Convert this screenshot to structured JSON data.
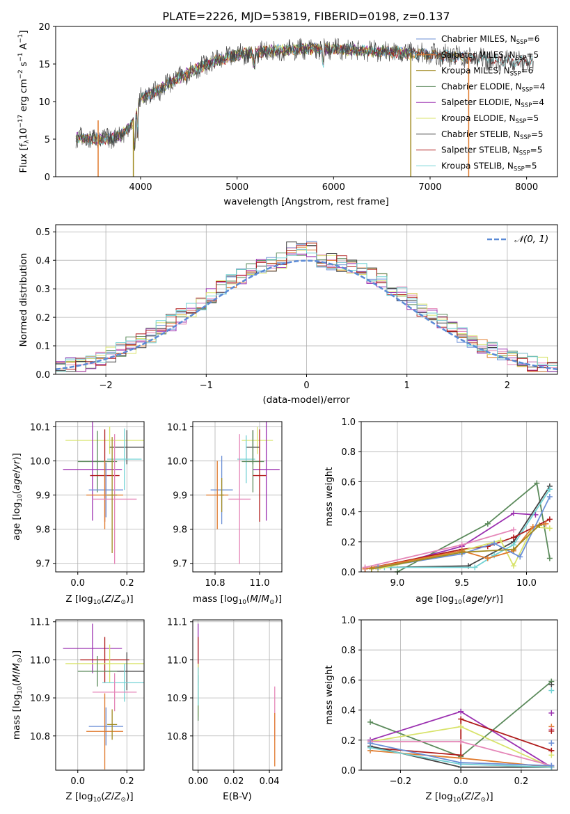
{
  "colors": {
    "chabrier_miles": "#6b8fd6",
    "salpeter_miles": "#e07a2c",
    "kroupa_miles": "#a08a20",
    "chabrier_elodie": "#5b8a5b",
    "salpeter_elodie": "#9b30b0",
    "kroupa_elodie": "#d8e36a",
    "chabrier_stelib": "#444444",
    "salpeter_stelib": "#b01c1c",
    "kroupa_stelib": "#72d2d4",
    "pink": "#e586b8",
    "normal_line": "#5a8ad6",
    "grid": "#b0b0b0"
  },
  "chart_data": [
    {
      "id": "spectrum",
      "type": "line",
      "title": "PLATE=2226, MJD=53819, FIBERID=0198, z=0.137",
      "xlabel": "wavelength [Angstrom, rest frame]",
      "ylabel": "Flux [f_λ10^-17 erg cm^-2 s^-1 A^-1]",
      "xlim": [
        3120,
        8320
      ],
      "ylim": [
        0,
        20
      ],
      "xticks": [
        "4000",
        "5000",
        "6000",
        "7000",
        "8000"
      ],
      "yticks": [
        "0",
        "5",
        "10",
        "15",
        "20"
      ],
      "grid": false,
      "legend_position": "top-right",
      "continuum_nodes": {
        "x": [
          3330,
          3500,
          3650,
          3800,
          3900,
          3940,
          4000,
          4150,
          4300,
          4450,
          4600,
          4800,
          5000,
          5200,
          5400,
          5700,
          6000,
          6300,
          6600,
          6900,
          7200,
          7500,
          7800,
          8070
        ],
        "y": [
          5.2,
          5.0,
          5.0,
          5.6,
          6.8,
          7.5,
          10.5,
          11.2,
          12.5,
          13.5,
          14.5,
          15.5,
          16.2,
          16.6,
          16.8,
          17.0,
          17.0,
          16.8,
          16.6,
          16.3,
          16.1,
          15.7,
          15.4,
          15.2
        ]
      },
      "dropouts": [
        {
          "x": 3560,
          "y": 0
        },
        {
          "x": 3925,
          "y": 0
        },
        {
          "x": 6800,
          "y": 0
        },
        {
          "x": 7400,
          "y": 0
        }
      ],
      "series": [
        {
          "name": "Chabrier MILES, N_SSP=6",
          "name_main": "Chabrier MILES, N",
          "sub": "SSP",
          "n": "=6",
          "color_key": "chabrier_miles"
        },
        {
          "name": "Salpeter MILES, N_SSP=5",
          "name_main": "Salpeter MILES, N",
          "sub": "SSP",
          "n": "=5",
          "color_key": "salpeter_miles"
        },
        {
          "name": "Kroupa MILES, N_SSP=6",
          "name_main": "Kroupa MILES, N",
          "sub": "SSP",
          "n": "=6",
          "color_key": "kroupa_miles"
        },
        {
          "name": "Chabrier ELODIE, N_SSP=4",
          "name_main": "Chabrier ELODIE, N",
          "sub": "SSP",
          "n": "=4",
          "color_key": "chabrier_elodie"
        },
        {
          "name": "Salpeter ELODIE, N_SSP=4",
          "name_main": "Salpeter ELODIE, N",
          "sub": "SSP",
          "n": "=4",
          "color_key": "salpeter_elodie"
        },
        {
          "name": "Kroupa ELODIE, N_SSP=5",
          "name_main": "Kroupa ELODIE, N",
          "sub": "SSP",
          "n": "=5",
          "color_key": "kroupa_elodie"
        },
        {
          "name": "Chabrier STELIB, N_SSP=5",
          "name_main": "Chabrier STELIB, N",
          "sub": "SSP",
          "n": "=5",
          "color_key": "chabrier_stelib"
        },
        {
          "name": "Salpeter STELIB, N_SSP=5",
          "name_main": "Salpeter STELIB, N",
          "sub": "SSP",
          "n": "=5",
          "color_key": "salpeter_stelib"
        },
        {
          "name": "Kroupa STELIB, N_SSP=5",
          "name_main": "Kroupa STELIB, N",
          "sub": "SSP",
          "n": "=5",
          "color_key": "kroupa_stelib"
        }
      ]
    },
    {
      "id": "residuals",
      "type": "line",
      "xlabel": "(data-model)/error",
      "ylabel": "Normed distribution",
      "xlim": [
        -2.5,
        2.5
      ],
      "ylim": [
        0,
        0.525
      ],
      "xticks": [
        "−2",
        "−1",
        "0",
        "1",
        "2"
      ],
      "xtick_values": [
        -2,
        -1,
        0,
        1,
        2
      ],
      "yticks": [
        "0.0",
        "0.1",
        "0.2",
        "0.3",
        "0.4",
        "0.5"
      ],
      "ytick_values": [
        0,
        0.1,
        0.2,
        0.3,
        0.4,
        0.5
      ],
      "grid": true,
      "legend_position": "top-right",
      "legend_label": "𝒩(0, 1)",
      "bin_width": 0.1
    },
    {
      "id": "age_vs_Z",
      "type": "scatter",
      "xlabel_main": "Z [log",
      "xlabel_sub": "10",
      "xlabel_rest": "(Z/Z",
      "ylabel": "age  [log10(age/yr)]",
      "xlim": [
        -0.09,
        0.27
      ],
      "ylim": [
        9.675,
        10.115
      ],
      "xticks": [
        "0.0",
        "0.2"
      ],
      "xtick_values": [
        0,
        0.2
      ],
      "yticks": [
        "9.7",
        "9.8",
        "9.9",
        "10.0",
        "10.1"
      ],
      "ytick_values": [
        9.7,
        9.8,
        9.9,
        10.0,
        10.1
      ],
      "grid": true,
      "points": [
        {
          "c": "kroupa_elodie",
          "x": 0.13,
          "y": 10.06,
          "xe": 0.18,
          "ye": 0.04
        },
        {
          "c": "chabrier_stelib",
          "x": 0.2,
          "y": 10.04,
          "xe": 0.07,
          "ye": 0.05
        },
        {
          "c": "kroupa_stelib",
          "x": 0.19,
          "y": 10.005,
          "xe": 0.07,
          "ye": 0.09
        },
        {
          "c": "chabrier_elodie",
          "x": 0.08,
          "y": 9.998,
          "xe": 0.08,
          "ye": 0.09
        },
        {
          "c": "salpeter_elodie",
          "x": 0.06,
          "y": 9.975,
          "xe": 0.12,
          "ye": 0.15
        },
        {
          "c": "salpeter_stelib",
          "x": 0.11,
          "y": 9.957,
          "xe": 0.06,
          "ye": 0.135
        },
        {
          "c": "chabrier_miles",
          "x": 0.115,
          "y": 9.915,
          "xe": 0.07,
          "ye": 0.08
        },
        {
          "c": "salpeter_miles",
          "x": 0.11,
          "y": 9.9,
          "xe": 0.075,
          "ye": 0.1
        },
        {
          "c": "pink",
          "x": 0.15,
          "y": 9.888,
          "xe": 0.09,
          "ye": 0.19
        },
        {
          "c": "kroupa_miles",
          "x": 0.14,
          "y": 9.9,
          "xe": 0.02,
          "ye": 0.17
        }
      ]
    },
    {
      "id": "age_vs_mass",
      "type": "scatter",
      "xlabel_main": "mass [log",
      "xlabel_sub": "10",
      "xlabel_rest": "(M/M",
      "xlim": [
        10.7,
        11.1
      ],
      "ylim": [
        9.675,
        10.115
      ],
      "xticks": [
        "10.8",
        "11.0"
      ],
      "xtick_values": [
        10.8,
        11.0
      ],
      "yticks": [
        "9.7",
        "9.8",
        "9.9",
        "10.0",
        "10.1"
      ],
      "ytick_values": [
        9.7,
        9.8,
        9.9,
        10.0,
        10.1
      ],
      "grid": true,
      "points": [
        {
          "c": "kroupa_elodie",
          "x": 10.99,
          "y": 10.06,
          "xe": 0.07,
          "ye": 0.04
        },
        {
          "c": "chabrier_stelib",
          "x": 10.97,
          "y": 10.04,
          "xe": 0.03,
          "ye": 0.05
        },
        {
          "c": "kroupa_stelib",
          "x": 10.94,
          "y": 10.005,
          "xe": 0.04,
          "ye": 0.07
        },
        {
          "c": "chabrier_elodie",
          "x": 10.97,
          "y": 9.998,
          "xe": 0.05,
          "ye": 0.09
        },
        {
          "c": "salpeter_elodie",
          "x": 11.03,
          "y": 9.975,
          "xe": 0.06,
          "ye": 0.15
        },
        {
          "c": "salpeter_stelib",
          "x": 11.0,
          "y": 9.957,
          "xe": 0.03,
          "ye": 0.135
        },
        {
          "c": "chabrier_miles",
          "x": 10.83,
          "y": 9.915,
          "xe": 0.05,
          "ye": 0.1
        },
        {
          "c": "salpeter_miles",
          "x": 10.81,
          "y": 9.9,
          "xe": 0.05,
          "ye": 0.1
        },
        {
          "c": "pink",
          "x": 10.91,
          "y": 9.888,
          "xe": 0.05,
          "ye": 0.19
        },
        {
          "c": "kroupa_miles",
          "x": 10.83,
          "y": 9.9,
          "xe": 0.01,
          "ye": 0.05
        }
      ]
    },
    {
      "id": "weight_vs_age",
      "type": "line",
      "xlabel_main": "age  [log",
      "xlabel_sub": "10",
      "xlabel_rest": "(age/yr)]",
      "ylabel": "mass weight",
      "xlim": [
        8.72,
        10.24
      ],
      "ylim": [
        0,
        1
      ],
      "xticks": [
        "9.0",
        "9.5",
        "10.0"
      ],
      "xtick_values": [
        9.0,
        9.5,
        10.0
      ],
      "yticks": [
        "0.0",
        "0.2",
        "0.4",
        "0.6",
        "0.8",
        "1.0"
      ],
      "ytick_values": [
        0,
        0.2,
        0.4,
        0.6,
        0.8,
        1.0
      ],
      "grid": true,
      "series": [
        {
          "c": "chabrier_elodie",
          "x": [
            9.0,
            9.7,
            10.08,
            10.18
          ],
          "y": [
            0.0,
            0.32,
            0.59,
            0.09
          ]
        },
        {
          "c": "salpeter_elodie",
          "x": [
            8.85,
            9.5,
            9.9,
            10.07
          ],
          "y": [
            0.02,
            0.17,
            0.39,
            0.38
          ]
        },
        {
          "c": "chabrier_stelib",
          "x": [
            8.95,
            9.55,
            9.9,
            10.18
          ],
          "y": [
            0.03,
            0.04,
            0.2,
            0.57
          ]
        },
        {
          "c": "kroupa_stelib",
          "x": [
            8.9,
            9.6,
            9.75,
            9.9,
            10.18
          ],
          "y": [
            0.03,
            0.03,
            0.11,
            0.18,
            0.55
          ]
        },
        {
          "c": "salpeter_stelib",
          "x": [
            8.75,
            9.5,
            9.7,
            9.9,
            10.18
          ],
          "y": [
            0.02,
            0.15,
            0.17,
            0.23,
            0.35
          ]
        },
        {
          "c": "kroupa_elodie",
          "x": [
            8.85,
            9.5,
            9.8,
            9.9,
            10.05,
            10.18
          ],
          "y": [
            0.02,
            0.14,
            0.21,
            0.04,
            0.3,
            0.29
          ]
        },
        {
          "c": "salpeter_miles",
          "x": [
            8.75,
            9.5,
            9.7,
            9.9,
            10.05,
            10.15
          ],
          "y": [
            0.02,
            0.14,
            0.09,
            0.14,
            0.3,
            0.32
          ]
        },
        {
          "c": "pink",
          "x": [
            8.75,
            9.5,
            9.9
          ],
          "y": [
            0.03,
            0.18,
            0.28
          ]
        },
        {
          "c": "chabrier_miles",
          "x": [
            8.85,
            9.5,
            9.75,
            9.95,
            10.18
          ],
          "y": [
            0.03,
            0.12,
            0.19,
            0.1,
            0.5
          ]
        },
        {
          "c": "kroupa_miles",
          "x": [
            8.8,
            9.5,
            9.9,
            10.1
          ],
          "y": [
            0.02,
            0.13,
            0.15,
            0.31
          ]
        }
      ]
    },
    {
      "id": "mass_vs_Z",
      "type": "scatter",
      "xlabel_main": "Z [log",
      "xlabel_sub": "10",
      "xlabel_rest": "(Z/Z",
      "ylabel": "mass [log10(M/M⊙)]",
      "xlim": [
        -0.09,
        0.27
      ],
      "ylim": [
        10.71,
        11.105
      ],
      "xticks": [
        "0.0",
        "0.2"
      ],
      "xtick_values": [
        0,
        0.2
      ],
      "yticks": [
        "10.8",
        "10.9",
        "11.0",
        "11.1"
      ],
      "ytick_values": [
        10.8,
        10.9,
        11.0,
        11.1
      ],
      "grid": true,
      "points": [
        {
          "c": "salpeter_elodie",
          "x": 0.06,
          "y": 11.03,
          "xe": 0.12,
          "ye": 0.065
        },
        {
          "c": "salpeter_stelib",
          "x": 0.11,
          "y": 11.0,
          "xe": 0.1,
          "ye": 0.06
        },
        {
          "c": "kroupa_elodie",
          "x": 0.13,
          "y": 10.99,
          "xe": 0.18,
          "ye": 0.05
        },
        {
          "c": "chabrier_stelib",
          "x": 0.2,
          "y": 10.97,
          "xe": 0.07,
          "ye": 0.05
        },
        {
          "c": "chabrier_elodie",
          "x": 0.08,
          "y": 10.97,
          "xe": 0.08,
          "ye": 0.04
        },
        {
          "c": "kroupa_stelib",
          "x": 0.19,
          "y": 10.94,
          "xe": 0.09,
          "ye": 0.05
        },
        {
          "c": "pink",
          "x": 0.15,
          "y": 10.915,
          "xe": 0.09,
          "ye": 0.05
        },
        {
          "c": "chabrier_miles",
          "x": 0.115,
          "y": 10.825,
          "xe": 0.07,
          "ye": 0.05
        },
        {
          "c": "salpeter_miles",
          "x": 0.11,
          "y": 10.812,
          "xe": 0.075,
          "ye": 0.1
        },
        {
          "c": "kroupa_miles",
          "x": 0.14,
          "y": 10.83,
          "xe": 0.02,
          "ye": 0.04
        }
      ]
    },
    {
      "id": "mass_vs_EBV",
      "type": "scatter",
      "xlabel": "E(B-V)",
      "xlim": [
        -0.003,
        0.047
      ],
      "ylim": [
        10.71,
        11.105
      ],
      "xticks": [
        "0.00",
        "0.02",
        "0.04"
      ],
      "xtick_values": [
        0,
        0.02,
        0.04
      ],
      "yticks": [
        "10.8",
        "10.9",
        "11.0",
        "11.1"
      ],
      "ytick_values": [
        10.8,
        10.9,
        11.0,
        11.1
      ],
      "grid": true,
      "points": [
        {
          "c": "salpeter_elodie",
          "x": 0.0,
          "y": 11.03,
          "xe": 0.0002,
          "ye": 0.065
        },
        {
          "c": "salpeter_stelib",
          "x": 0.0,
          "y": 11.0,
          "xe": 0.0002,
          "ye": 0.06
        },
        {
          "c": "kroupa_elodie",
          "x": 0.0,
          "y": 10.92,
          "xe": 0.0002,
          "ye": 0.07
        },
        {
          "c": "chabrier_elodie",
          "x": 0.0,
          "y": 10.9,
          "xe": 0.0002,
          "ye": 0.06
        },
        {
          "c": "kroupa_stelib",
          "x": 0.0,
          "y": 10.93,
          "xe": 0.0002,
          "ye": 0.05
        },
        {
          "c": "pink",
          "x": 0.043,
          "y": 10.86,
          "xe": 0.0002,
          "ye": 0.07
        },
        {
          "c": "salpeter_miles",
          "x": 0.043,
          "y": 10.79,
          "xe": 0.0002,
          "ye": 0.07
        }
      ]
    },
    {
      "id": "weight_vs_Z",
      "type": "line",
      "xlabel_main": "Z [log",
      "xlabel_sub": "10",
      "xlabel_rest": "(Z/Z",
      "ylabel": "mass weight",
      "xlim": [
        -0.33,
        0.32
      ],
      "ylim": [
        0,
        1
      ],
      "xticks": [
        "−0.2",
        "0.0",
        "0.2"
      ],
      "xtick_values": [
        -0.2,
        0.0,
        0.2
      ],
      "yticks": [
        "0.0",
        "0.2",
        "0.4",
        "0.6",
        "0.8",
        "1.0"
      ],
      "ytick_values": [
        0,
        0.2,
        0.4,
        0.6,
        0.8,
        1.0
      ],
      "grid": true,
      "series": [
        {
          "c": "chabrier_elodie",
          "x": [
            -0.3,
            0.0,
            0.3
          ],
          "y": [
            0.32,
            0.09,
            0.59
          ]
        },
        {
          "c": "salpeter_elodie",
          "x": [
            -0.3,
            0.0,
            0.3
          ],
          "y": [
            0.2,
            0.39,
            0.02
          ]
        },
        {
          "c": "salpeter_stelib",
          "x": [
            -0.3,
            0.0,
            0.0,
            0.3
          ],
          "y": [
            0.15,
            0.1,
            0.34,
            0.13
          ]
        },
        {
          "c": "kroupa_elodie",
          "x": [
            -0.3,
            0.0,
            0.3
          ],
          "y": [
            0.19,
            0.29,
            0.02
          ]
        },
        {
          "c": "pink",
          "x": [
            -0.3,
            0.0,
            0.3
          ],
          "y": [
            0.19,
            0.19,
            0.03
          ]
        },
        {
          "c": "chabrier_stelib",
          "x": [
            -0.3,
            0.0,
            0.3
          ],
          "y": [
            0.16,
            0.02,
            0.02
          ]
        },
        {
          "c": "salpeter_miles",
          "x": [
            -0.3,
            0.0,
            0.3
          ],
          "y": [
            0.13,
            0.08,
            0.02
          ]
        },
        {
          "c": "kroupa_stelib",
          "x": [
            -0.3,
            0.0,
            0.3
          ],
          "y": [
            0.15,
            0.04,
            0.02
          ]
        },
        {
          "c": "chabrier_miles",
          "x": [
            -0.3,
            0.0,
            0.3
          ],
          "y": [
            0.18,
            0.05,
            0.03
          ]
        }
      ],
      "right_edge_points": [
        0.57,
        0.53,
        0.38,
        0.29,
        0.27,
        0.26,
        0.18,
        0.13,
        0.1
      ]
    }
  ]
}
